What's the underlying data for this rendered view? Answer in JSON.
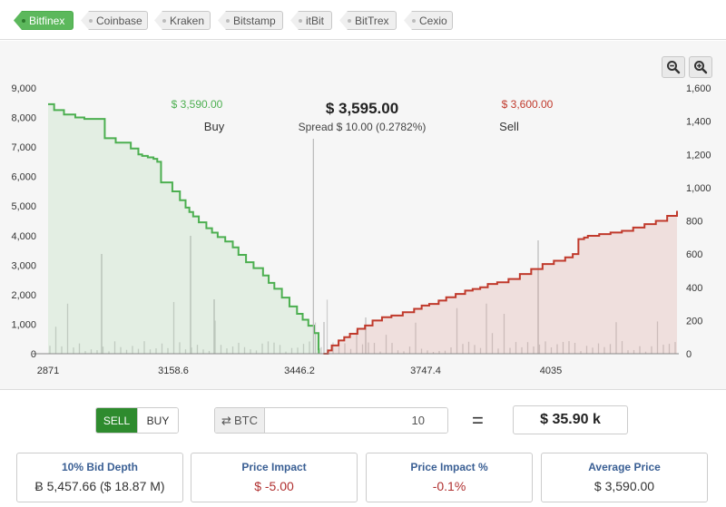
{
  "exchanges": {
    "active": "Bitfinex",
    "tabs": [
      "Bitfinex",
      "Coinbase",
      "Kraken",
      "Bitstamp",
      "itBit",
      "BitTrex",
      "Cexio"
    ]
  },
  "chart": {
    "mid_price": "$ 3,595.00",
    "spread": "Spread $ 10.00 (0.2782%)",
    "bid_price": "$ 3,590.00",
    "ask_price": "$ 3,600.00",
    "bid_label": "Buy",
    "ask_label": "Sell"
  },
  "chart_data": {
    "type": "area",
    "x_ticks": [
      "2871",
      "3158.6",
      "3446.2",
      "3747.4",
      "4035"
    ],
    "y_left_ticks": [
      "0",
      "1,000",
      "2,000",
      "3,000",
      "4,000",
      "5,000",
      "6,000",
      "7,000",
      "8,000",
      "9,000"
    ],
    "y_right_ticks": [
      "0",
      "200",
      "400",
      "600",
      "800",
      "1,000",
      "1,200",
      "1,400",
      "1,600"
    ],
    "xlim": [
      2871,
      4536
    ],
    "y_left_lim": [
      0,
      9000
    ],
    "y_right_lim": [
      0,
      1600
    ],
    "mid_x": 3595,
    "series": [
      {
        "name": "Buy",
        "color": "#4caf50",
        "x": [
          2871,
          2887,
          2913,
          2943,
          2967,
          3011,
          3021,
          3050,
          3090,
          3110,
          3120,
          3135,
          3150,
          3160,
          3170,
          3200,
          3220,
          3235,
          3245,
          3255,
          3270,
          3290,
          3305,
          3320,
          3340,
          3360,
          3375,
          3395,
          3415,
          3440,
          3455,
          3470,
          3490,
          3510,
          3530,
          3545,
          3560,
          3575,
          3587
        ],
        "y": [
          8450,
          8250,
          8100,
          8000,
          7950,
          7950,
          7300,
          7150,
          6950,
          6750,
          6700,
          6650,
          6600,
          6500,
          5800,
          5500,
          5200,
          4950,
          4800,
          4650,
          4450,
          4250,
          4100,
          3950,
          3800,
          3600,
          3350,
          3100,
          2900,
          2650,
          2400,
          2200,
          1900,
          1600,
          1350,
          1150,
          950,
          700,
          150
        ]
      },
      {
        "name": "Sell",
        "color": "#c0392b",
        "x": [
          3600,
          3612,
          3622,
          3640,
          3655,
          3670,
          3690,
          3710,
          3730,
          3755,
          3780,
          3810,
          3840,
          3860,
          3880,
          3905,
          3925,
          3950,
          3975,
          3995,
          4015,
          4035,
          4060,
          4090,
          4120,
          4150,
          4180,
          4210,
          4240,
          4260,
          4275,
          4290,
          4300,
          4305,
          4330,
          4360,
          4390,
          4420,
          4450,
          4480,
          4510,
          4536
        ],
        "y": [
          0,
          20,
          50,
          80,
          100,
          120,
          150,
          170,
          200,
          220,
          230,
          250,
          270,
          290,
          300,
          320,
          340,
          360,
          380,
          390,
          400,
          420,
          430,
          450,
          480,
          510,
          540,
          560,
          580,
          600,
          690,
          700,
          710,
          710,
          720,
          730,
          740,
          760,
          780,
          800,
          830,
          860
        ]
      }
    ],
    "grid": false
  },
  "order_form": {
    "side_sell": "SELL",
    "side_buy": "BUY",
    "currency": "BTC",
    "amount": "10",
    "equals": "=",
    "result": "$ 35.90 k"
  },
  "stats": [
    {
      "title": "10% Bid Depth",
      "value": "Ƀ 5,457.66 ($ 18.87 M)"
    },
    {
      "title": "Price Impact",
      "value": "$ -5.00"
    },
    {
      "title": "Price Impact %",
      "value": "-0.1%"
    },
    {
      "title": "Average Price",
      "value": "$ 3,590.00"
    }
  ]
}
